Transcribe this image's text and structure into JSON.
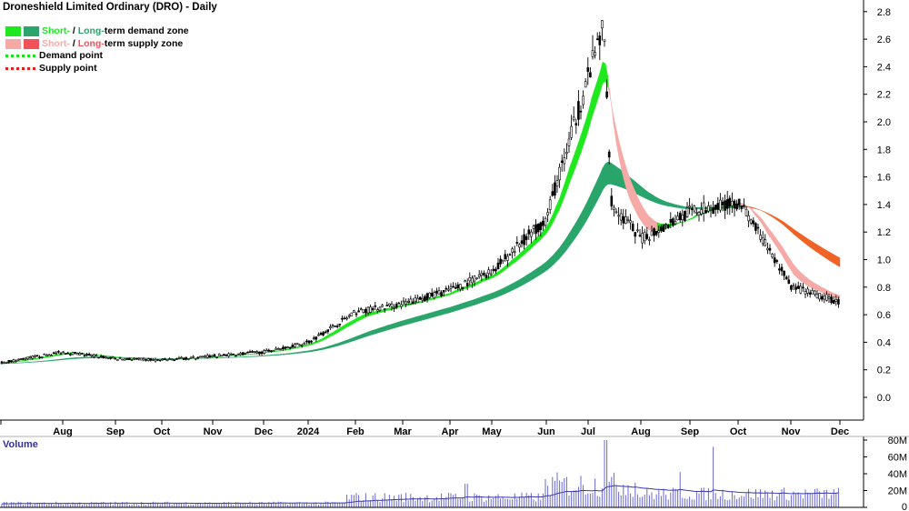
{
  "title": "Droneshield Limited Ordinary (DRO) - Daily",
  "legend": {
    "row1": {
      "short": "Short-",
      "sep": " / ",
      "long": "Long-",
      "rest": "term demand zone",
      "short_color": "#1fe81f",
      "long_color": "#2aa56b"
    },
    "row2": {
      "short": "Short-",
      "sep": " / ",
      "long": "Long-",
      "rest": "term supply zone",
      "short_color": "#f6aaa8",
      "long_color": "#f1525a"
    },
    "row3": {
      "label": "Demand point",
      "color": "#22dd22"
    },
    "row4": {
      "label": "Supply point",
      "color": "#dd2222"
    }
  },
  "volume_label": "Volume",
  "colors": {
    "short_demand": "#1fe81f",
    "long_demand": "#2aa56b",
    "short_supply": "#f6aaa8",
    "long_supply": "#f06326",
    "candle": "#000000",
    "volume": "#6a6acd",
    "volume_avg": "#3a3aaa",
    "axis": "#000000",
    "volume_label": "#33339a"
  },
  "chart_data": {
    "type": "candlestick",
    "title": "Droneshield Limited Ordinary (DRO) - Daily",
    "x_tick_labels": [
      "Aug",
      "Sep",
      "Oct",
      "Nov",
      "Dec",
      "2024",
      "Feb",
      "Mar",
      "Apr",
      "May",
      "Jun",
      "Jul",
      "Aug",
      "Sep",
      "Oct",
      "Nov",
      "Dec"
    ],
    "y_tick_labels": [
      "0.0",
      "0.2",
      "0.4",
      "0.6",
      "0.8",
      "1.0",
      "1.2",
      "1.4",
      "1.6",
      "1.8",
      "2.0",
      "2.2",
      "2.4",
      "2.6",
      "2.8"
    ],
    "ylim": [
      -0.1,
      2.85
    ],
    "price_close_path": [
      {
        "month": "Jul 2023",
        "value": 0.25
      },
      {
        "month": "Aug 2023",
        "value": 0.33
      },
      {
        "month": "Sep 2023",
        "value": 0.28
      },
      {
        "month": "Oct 2023",
        "value": 0.27
      },
      {
        "month": "Nov 2023",
        "value": 0.3
      },
      {
        "month": "Dec 2023",
        "value": 0.33
      },
      {
        "month": "Jan 2024",
        "value": 0.4
      },
      {
        "month": "Feb 2024",
        "value": 0.62
      },
      {
        "month": "Mar 2024",
        "value": 0.68
      },
      {
        "month": "Apr 2024",
        "value": 0.78
      },
      {
        "month": "May 2024",
        "value": 0.92
      },
      {
        "month": "Jun 2024",
        "value": 1.3
      },
      {
        "month": "Jul 2024 (peak)",
        "value": 2.7
      },
      {
        "month": "Jul 2024 (end)",
        "value": 1.4
      },
      {
        "month": "Aug 2024",
        "value": 1.15
      },
      {
        "month": "Sep 2024",
        "value": 1.35
      },
      {
        "month": "Oct 2024",
        "value": 1.42
      },
      {
        "month": "Nov 2024",
        "value": 0.8
      },
      {
        "month": "Dec 2024",
        "value": 0.69
      }
    ],
    "volume": {
      "y_tick_labels": [
        "80M",
        "60M",
        "40M",
        "20M",
        "0"
      ],
      "ylim": [
        0,
        85
      ]
    }
  }
}
